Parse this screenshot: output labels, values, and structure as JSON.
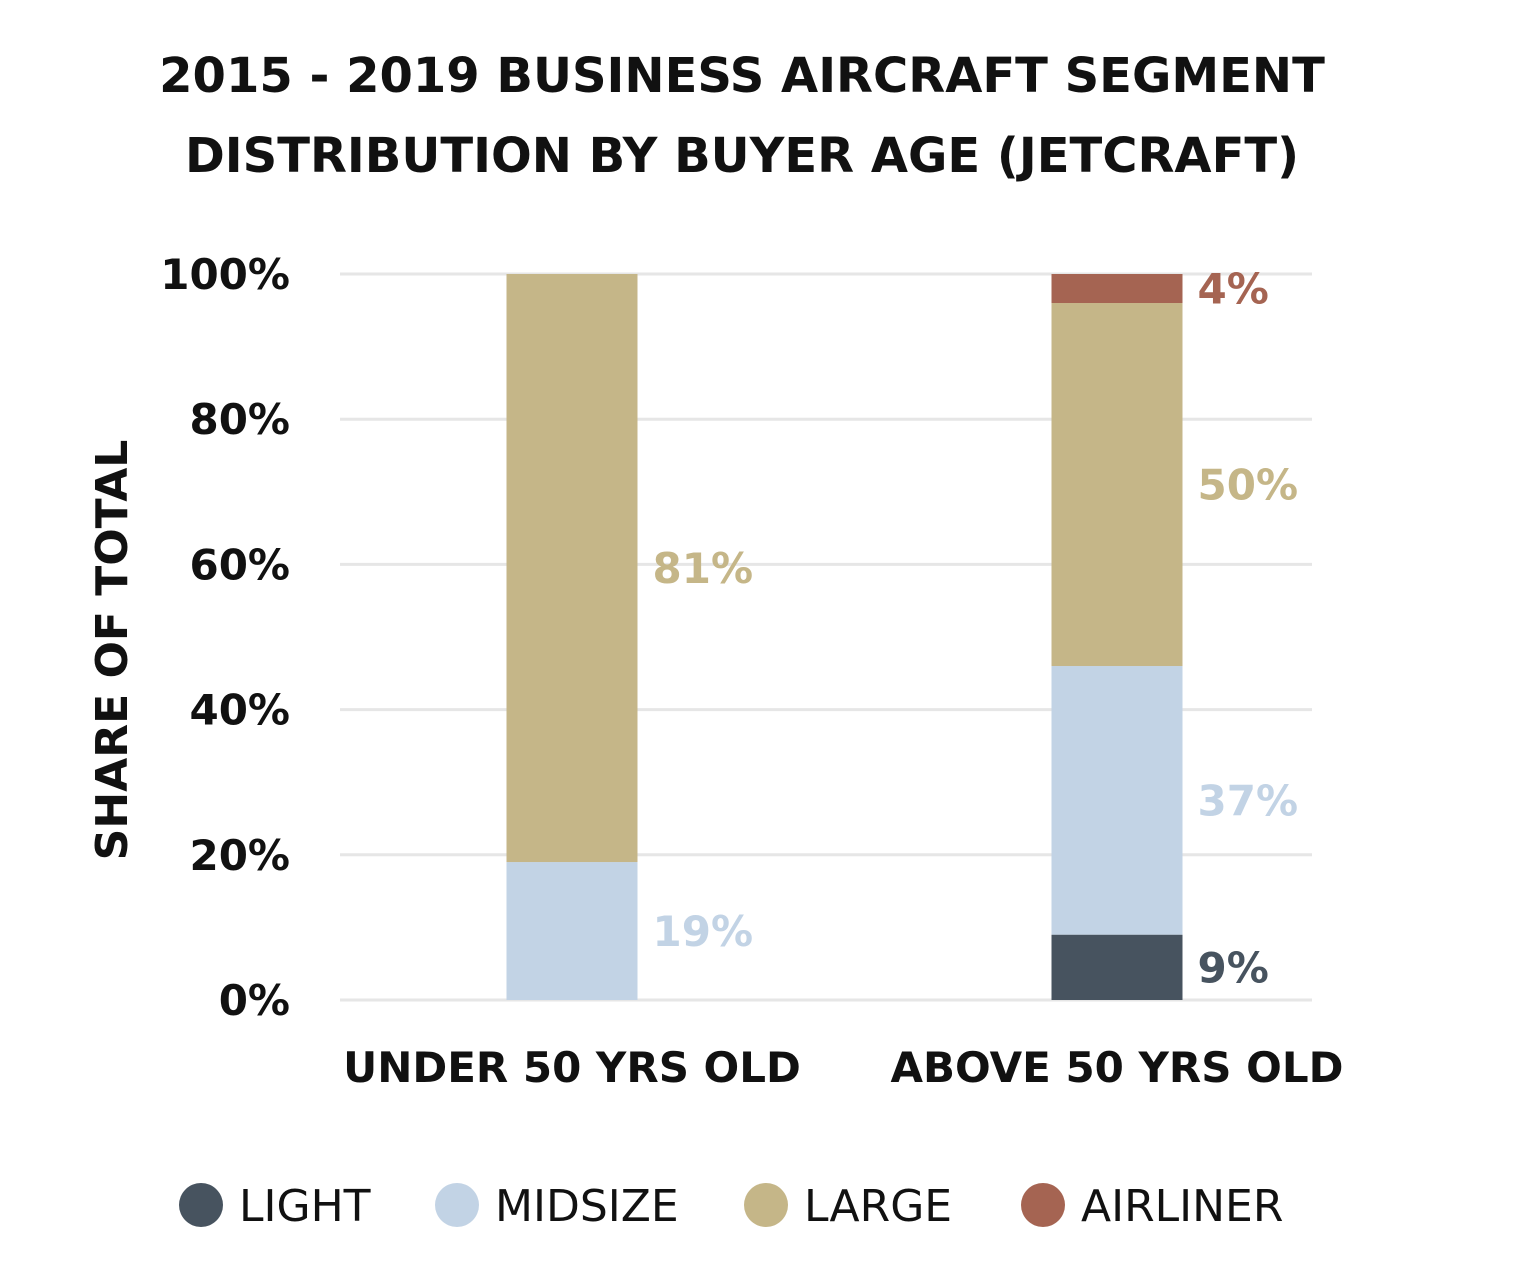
{
  "chart_data": {
    "type": "bar",
    "stacked": true,
    "title": [
      "2015 - 2019 BUSINESS AIRCRAFT SEGMENT",
      "DISTRIBUTION BY BUYER AGE (JETCRAFT)"
    ],
    "xlabel": "",
    "ylabel": "SHARE OF TOTAL",
    "ylim": [
      0,
      100
    ],
    "yticks": [
      0,
      20,
      40,
      60,
      80,
      100
    ],
    "ytick_labels": [
      "0%",
      "20%",
      "40%",
      "60%",
      "80%",
      "100%"
    ],
    "grid": true,
    "legend_position": "bottom",
    "categories": [
      "UNDER 50 YRS OLD",
      "ABOVE 50 YRS OLD"
    ],
    "series": [
      {
        "name": "LIGHT",
        "color": "#47535f",
        "values": [
          0,
          9
        ],
        "labels": [
          "",
          "9%"
        ]
      },
      {
        "name": "MIDSIZE",
        "color": "#c2d3e5",
        "values": [
          19,
          37
        ],
        "labels": [
          "19%",
          "37%"
        ]
      },
      {
        "name": "LARGE",
        "color": "#c5b688",
        "values": [
          81,
          50
        ],
        "labels": [
          "81%",
          "50%"
        ]
      },
      {
        "name": "AIRLINER",
        "color": "#a56452",
        "values": [
          0,
          4
        ],
        "labels": [
          "",
          "4%"
        ]
      }
    ]
  }
}
